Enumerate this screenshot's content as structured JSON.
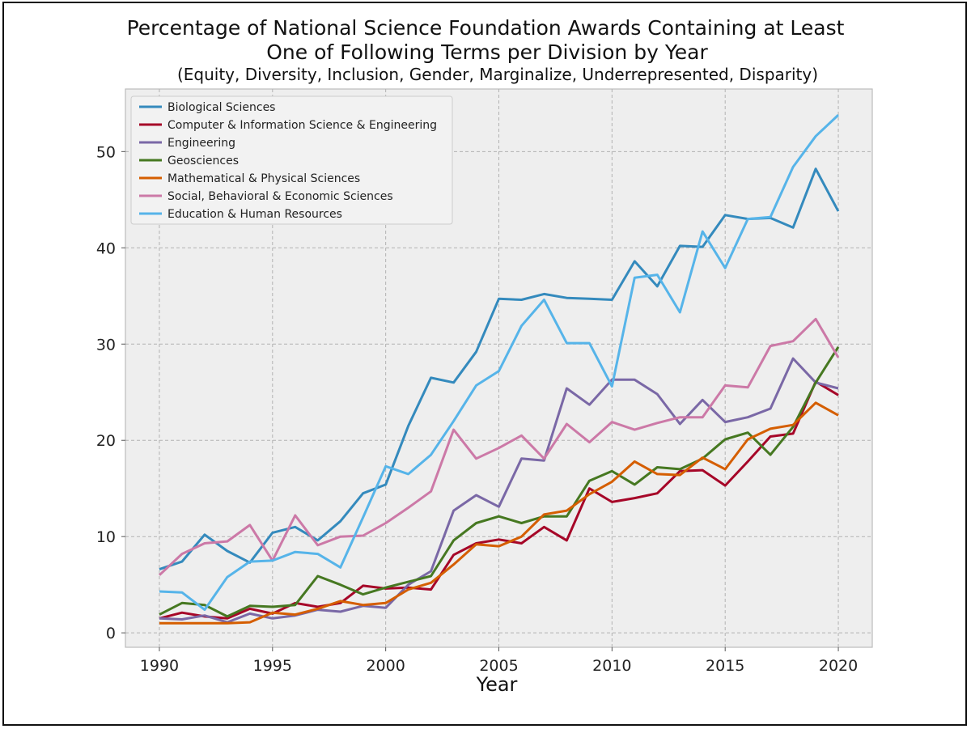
{
  "chart_data": {
    "type": "line",
    "title": "Percentage of National Science Foundation Awards Containing at Least",
    "title_line2": "One of Following Terms per Division by Year",
    "subtitle": "(Equity, Diversity, Inclusion, Gender, Marginalize, Underrepresented, Disparity)",
    "xlabel": "Year",
    "ylabel": "",
    "xlim": [
      1988.5,
      2021.5
    ],
    "ylim": [
      -1.5,
      56.5
    ],
    "xticks": [
      1990,
      1995,
      2000,
      2005,
      2010,
      2015,
      2020
    ],
    "yticks": [
      0,
      10,
      20,
      30,
      40,
      50
    ],
    "grid": true,
    "legend_position": "top-left",
    "x": [
      1990,
      1991,
      1992,
      1993,
      1994,
      1995,
      1996,
      1997,
      1998,
      1999,
      2000,
      2001,
      2002,
      2003,
      2004,
      2005,
      2006,
      2007,
      2008,
      2009,
      2010,
      2011,
      2012,
      2013,
      2014,
      2015,
      2016,
      2017,
      2018,
      2019,
      2020
    ],
    "series": [
      {
        "name": "Biological Sciences",
        "color": "#348ABD",
        "values": [
          6.6,
          7.4,
          10.2,
          8.5,
          7.3,
          10.4,
          11.0,
          9.6,
          11.6,
          14.5,
          15.4,
          21.5,
          26.5,
          26.0,
          29.2,
          34.7,
          34.6,
          35.2,
          34.8,
          34.7,
          34.6,
          38.6,
          36.0,
          40.2,
          40.1,
          43.4,
          43.0,
          43.1,
          42.1,
          48.2,
          43.8
        ]
      },
      {
        "name": "Computer & Information Science & Engineering",
        "color": "#A60628",
        "values": [
          1.5,
          2.1,
          1.7,
          1.5,
          2.5,
          2.0,
          3.1,
          2.7,
          3.1,
          4.9,
          4.6,
          4.7,
          4.5,
          8.1,
          9.3,
          9.7,
          9.3,
          11.0,
          9.6,
          15.0,
          13.6,
          14.0,
          14.5,
          16.8,
          16.9,
          15.3,
          17.8,
          20.4,
          20.7,
          26.1,
          24.7
        ]
      },
      {
        "name": "Engineering",
        "color": "#7A68A6",
        "values": [
          1.5,
          1.4,
          1.8,
          1.1,
          2.0,
          1.5,
          1.8,
          2.4,
          2.2,
          2.8,
          2.6,
          5.0,
          6.4,
          12.7,
          14.3,
          13.1,
          18.1,
          17.9,
          25.4,
          23.7,
          26.3,
          26.3,
          24.8,
          21.7,
          24.2,
          21.9,
          22.4,
          23.3,
          28.5,
          26.0,
          25.4
        ]
      },
      {
        "name": "Geosciences",
        "color": "#467821",
        "values": [
          1.9,
          3.1,
          2.9,
          1.7,
          2.8,
          2.7,
          2.9,
          5.9,
          5.0,
          4.0,
          4.7,
          5.3,
          5.9,
          9.6,
          11.4,
          12.1,
          11.4,
          12.1,
          12.1,
          15.8,
          16.8,
          15.4,
          17.2,
          17.0,
          18.1,
          20.1,
          20.8,
          18.5,
          21.4,
          26.0,
          29.7
        ]
      },
      {
        "name": "Mathematical & Physical Sciences",
        "color": "#D55E00",
        "values": [
          1.0,
          1.0,
          1.0,
          1.0,
          1.1,
          2.1,
          1.9,
          2.5,
          3.3,
          2.9,
          3.1,
          4.5,
          5.2,
          7.1,
          9.2,
          9.0,
          10.0,
          12.3,
          12.7,
          14.4,
          15.7,
          17.8,
          16.5,
          16.4,
          18.2,
          17.0,
          20.1,
          21.2,
          21.6,
          23.9,
          22.6
        ]
      },
      {
        "name": "Social, Behavioral & Economic Sciences",
        "color": "#CC79A7",
        "values": [
          6.0,
          8.2,
          9.3,
          9.5,
          11.2,
          7.5,
          12.2,
          9.1,
          10.0,
          10.1,
          11.4,
          13.0,
          14.7,
          21.1,
          18.1,
          19.2,
          20.5,
          18.1,
          21.7,
          19.8,
          21.9,
          21.1,
          21.8,
          22.4,
          22.4,
          25.7,
          25.5,
          29.8,
          30.3,
          32.6,
          28.6
        ]
      },
      {
        "name": "Education & Human Resources",
        "color": "#56B4E9",
        "values": [
          4.3,
          4.2,
          2.4,
          5.8,
          7.4,
          7.5,
          8.4,
          8.2,
          6.8,
          12.0,
          17.3,
          16.5,
          18.5,
          22.0,
          25.7,
          27.2,
          31.9,
          34.6,
          30.1,
          30.1,
          25.6,
          36.9,
          37.2,
          33.3,
          41.7,
          37.9,
          43.0,
          43.2,
          48.4,
          51.6,
          53.8
        ]
      }
    ]
  }
}
